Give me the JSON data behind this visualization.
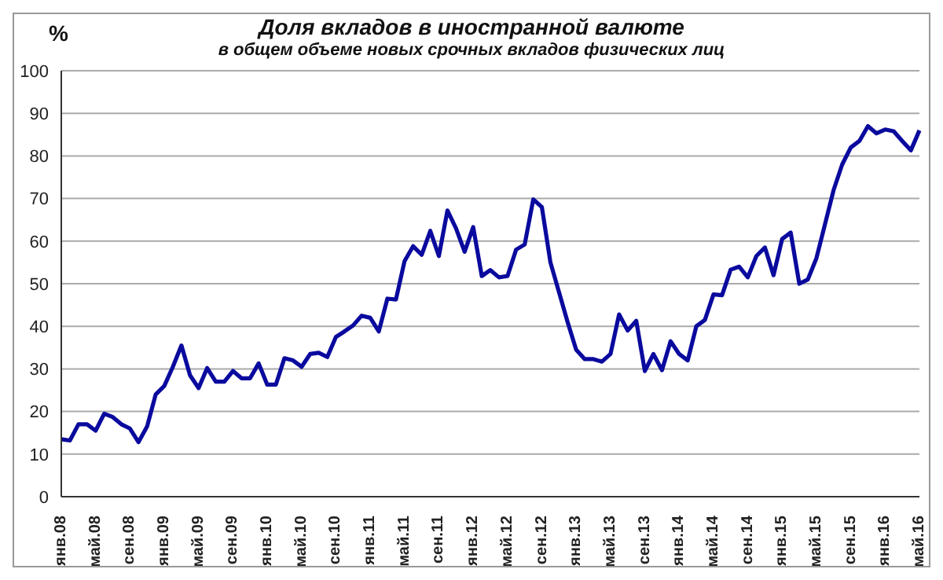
{
  "chart_data": {
    "type": "line",
    "title": "Доля вкладов в иностранной валюте",
    "subtitle": "в общем объеме новых срочных вкладов физических лиц",
    "ylabel": "%",
    "categories": [
      "янв.08",
      null,
      null,
      null,
      "май.08",
      null,
      null,
      null,
      "сен.08",
      null,
      null,
      null,
      "янв.09",
      null,
      null,
      null,
      "май.09",
      null,
      null,
      null,
      "сен.09",
      null,
      null,
      null,
      "янв.10",
      null,
      null,
      null,
      "май.10",
      null,
      null,
      null,
      "сен.10",
      null,
      null,
      null,
      "янв.11",
      null,
      null,
      null,
      "май.11",
      null,
      null,
      null,
      "сен.11",
      null,
      null,
      null,
      "янв.12",
      null,
      null,
      null,
      "май.12",
      null,
      null,
      null,
      "сен.12",
      null,
      null,
      null,
      "янв.13",
      null,
      null,
      null,
      "май.13",
      null,
      null,
      null,
      "сен.13",
      null,
      null,
      null,
      "янв.14",
      null,
      null,
      null,
      "май.14",
      null,
      null,
      null,
      "сен.14",
      null,
      null,
      null,
      "янв.15",
      null,
      null,
      null,
      "май.15",
      null,
      null,
      null,
      "сен.15",
      null,
      null,
      null,
      "янв.16",
      null,
      null,
      null,
      "май.16"
    ],
    "series": [
      {
        "color": "#0a0a9e",
        "values": [
          13.5,
          13.2,
          17,
          17,
          15.5,
          19.5,
          18.7,
          17,
          16,
          12.8,
          16.5,
          24,
          26,
          30.5,
          35.5,
          28.5,
          25.5,
          30.2,
          27,
          27,
          29.5,
          27.8,
          27.8,
          31.3,
          26.3,
          26.3,
          32.5,
          32,
          30.5,
          33.5,
          33.8,
          32.8,
          37.5,
          38.8,
          40.2,
          42.5,
          42,
          38.8,
          46.5,
          46.3,
          55.3,
          58.8,
          56.8,
          62.4,
          56.5,
          67.2,
          63,
          57.5,
          63.3,
          51.8,
          53.2,
          51.5,
          51.8,
          58,
          59.2,
          69.8,
          68,
          55,
          48,
          41,
          34.5,
          32.3,
          32.3,
          31.7,
          33.5,
          42.8,
          39,
          41.3,
          29.5,
          33.5,
          29.7,
          36.5,
          33.5,
          32,
          40,
          41.5,
          47.5,
          47.3,
          53.3,
          54,
          51.5,
          56.5,
          58.5,
          52,
          60.5,
          62,
          50,
          51,
          56,
          64,
          72,
          78,
          82,
          83.5,
          87,
          85.3,
          86.2,
          85.8,
          83.5,
          81.3,
          86
        ]
      }
    ],
    "ylim": [
      0,
      100
    ],
    "yticks": [
      0,
      10,
      20,
      30,
      40,
      50,
      60,
      70,
      80,
      90,
      100
    ],
    "grid": "y",
    "legend": false,
    "marker": "none",
    "line_style": "solid"
  }
}
